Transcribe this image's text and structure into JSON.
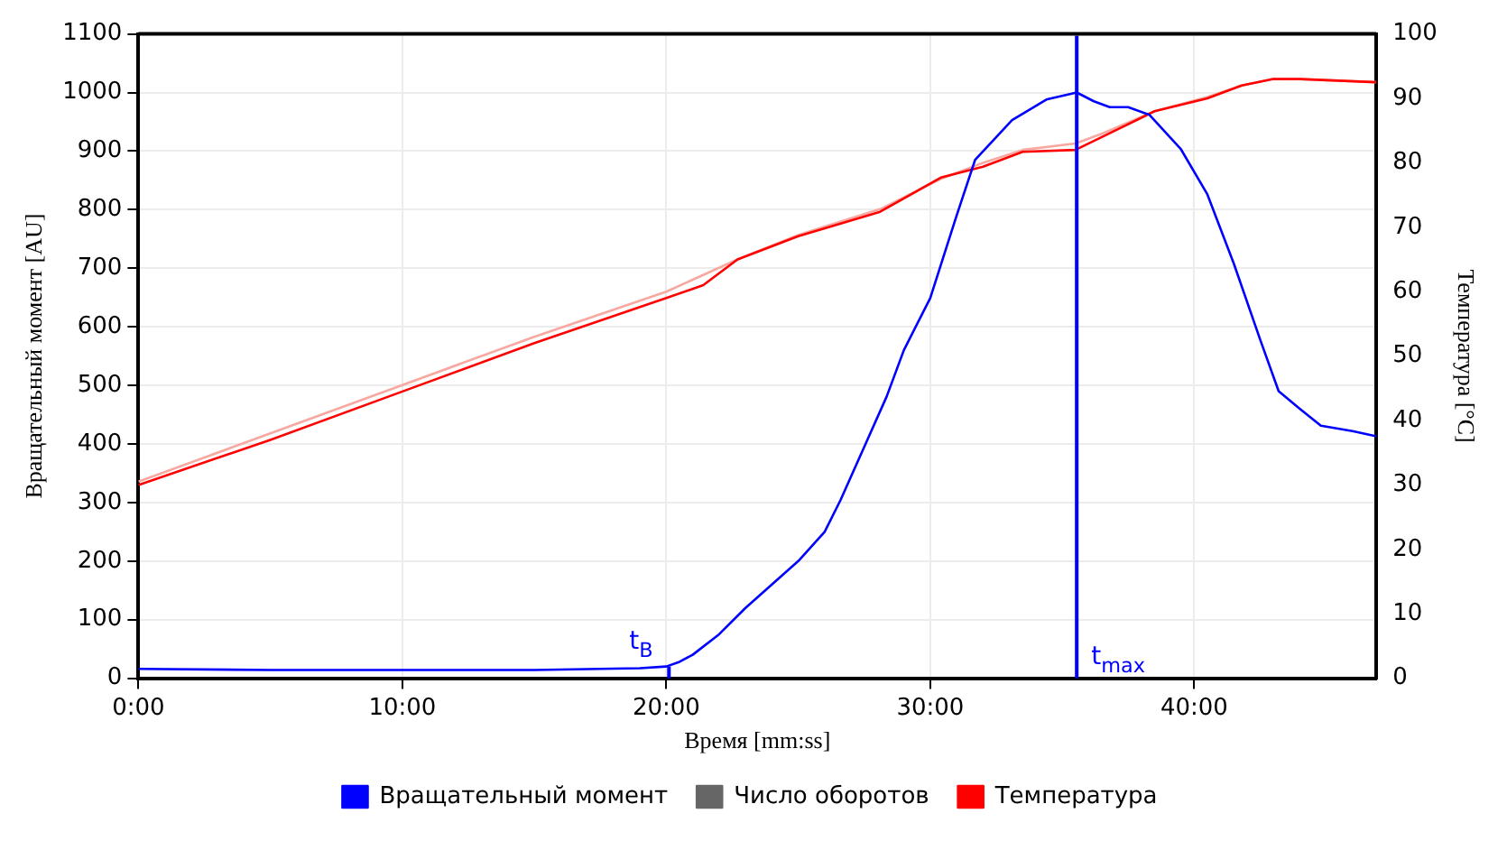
{
  "chart_data": {
    "type": "line",
    "xlabel": "Время [mm:ss]",
    "ylabel": "Вращательный момент [AU]",
    "y2label": "Температура [°C]",
    "xlim": [
      0,
      46.9
    ],
    "xticks": [
      {
        "value": 0,
        "label": "0:00"
      },
      {
        "value": 10,
        "label": "10:00"
      },
      {
        "value": 20,
        "label": "20:00"
      },
      {
        "value": 30,
        "label": "30:00"
      },
      {
        "value": 40,
        "label": "40:00"
      }
    ],
    "ylim": [
      0,
      1100
    ],
    "yticks": [
      0,
      100,
      200,
      300,
      400,
      500,
      600,
      700,
      800,
      900,
      1000,
      1100
    ],
    "y2lim": [
      0,
      100
    ],
    "y2ticks": [
      0,
      10,
      20,
      30,
      40,
      50,
      60,
      70,
      80,
      90,
      100
    ],
    "grid": true,
    "legend": "bottom",
    "marker": "none",
    "line_style": "solid",
    "series": [
      {
        "name": "Вращательный момент",
        "color": "#0000ff",
        "axis": "y",
        "x": [
          0,
          5,
          10,
          15,
          19,
          20,
          20.5,
          21,
          22,
          23,
          24,
          25,
          26,
          26.6,
          27.5,
          28.35,
          29,
          30,
          31,
          31.7,
          33.1,
          34.4,
          35.55,
          36.2,
          36.8,
          37.5,
          38.3,
          39.5,
          40.5,
          41.5,
          42.5,
          43.2,
          44,
          44.8,
          46,
          46.9
        ],
        "values": [
          16,
          14,
          14,
          14,
          17,
          20,
          28,
          40,
          75,
          120,
          160,
          200,
          250,
          304,
          395,
          481,
          560,
          649,
          790,
          885,
          953,
          988,
          1000,
          985,
          975,
          975,
          962,
          903,
          826,
          708,
          578,
          490,
          460,
          431,
          422,
          413
        ]
      },
      {
        "name": "Число оборотов",
        "color": "#666666",
        "axis": "y2"
      },
      {
        "name": "Температура",
        "color": "#ff0000",
        "axis": "y2",
        "x": [
          0,
          5,
          10,
          15,
          20,
          21.4,
          22.7,
          25,
          28.1,
          30.4,
          32,
          33.5,
          35.5,
          36.5,
          38.5,
          40.5,
          41.8,
          43,
          44,
          46.9
        ],
        "values": [
          30,
          37,
          44.5,
          52,
          59,
          61,
          65,
          68.6,
          72.4,
          77.7,
          79.4,
          81.7,
          82,
          84,
          88,
          90,
          92,
          93,
          93,
          92.5
        ]
      },
      {
        "color": "#f8a8a0",
        "axis": "y2",
        "x": [
          0,
          5,
          10,
          15,
          20,
          22.7,
          25,
          28.1,
          30.4,
          32,
          33.5,
          35.5,
          36.5,
          38.5,
          40.5,
          41.8,
          43,
          44,
          46.9
        ],
        "values": [
          30.5,
          38,
          45.5,
          53,
          60,
          65,
          68.8,
          72.8,
          77.5,
          80,
          82,
          83,
          84.5,
          88,
          90.2,
          92,
          93,
          93,
          92.5
        ]
      }
    ],
    "ref_lines": [
      {
        "axis": "x",
        "value": 35.55,
        "label": "t$_{max}$",
        "color": "#0000ff"
      }
    ],
    "annotations": [
      {
        "text": "t$_{B}$",
        "x": 20.1,
        "y": 20
      }
    ]
  }
}
